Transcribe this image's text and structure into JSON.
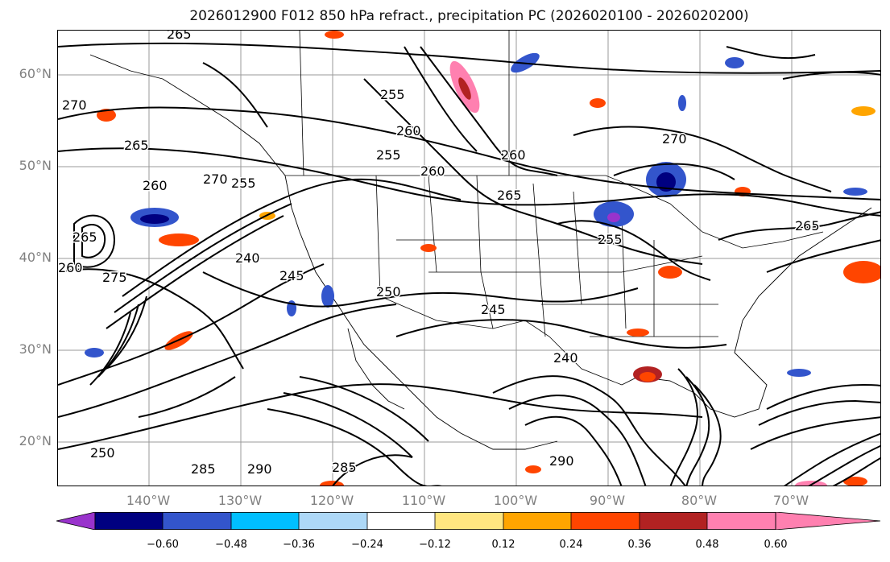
{
  "title": "2026012900 F012 850 hPa refract., precipitation PC (2026020100 - 2026020200)",
  "lat_labels": [
    "60°N",
    "50°N",
    "40°N",
    "30°N",
    "20°N"
  ],
  "lon_labels": [
    "140°W",
    "130°W",
    "120°W",
    "110°W",
    "100°W",
    "90°W",
    "80°W",
    "70°W"
  ],
  "contour_labels": [
    "265",
    "270",
    "265",
    "260",
    "270",
    "265",
    "260",
    "255",
    "240",
    "275",
    "245",
    "250",
    "245",
    "240",
    "255",
    "260",
    "255",
    "260",
    "265",
    "270",
    "265",
    "255",
    "260",
    "290",
    "285",
    "290",
    "285",
    "250"
  ],
  "colorbar": {
    "tick_labels": [
      "−0.60",
      "−0.48",
      "−0.36",
      "−0.24",
      "−0.12",
      "0.12",
      "0.24",
      "0.36",
      "0.48",
      "0.60"
    ],
    "colors": [
      "#9933cc",
      "#000080",
      "#3355cc",
      "#00bfff",
      "#add8f7",
      "#ffffff",
      "#ffe680",
      "#ffa500",
      "#ff4500",
      "#b22222",
      "#ff80b0"
    ]
  }
}
